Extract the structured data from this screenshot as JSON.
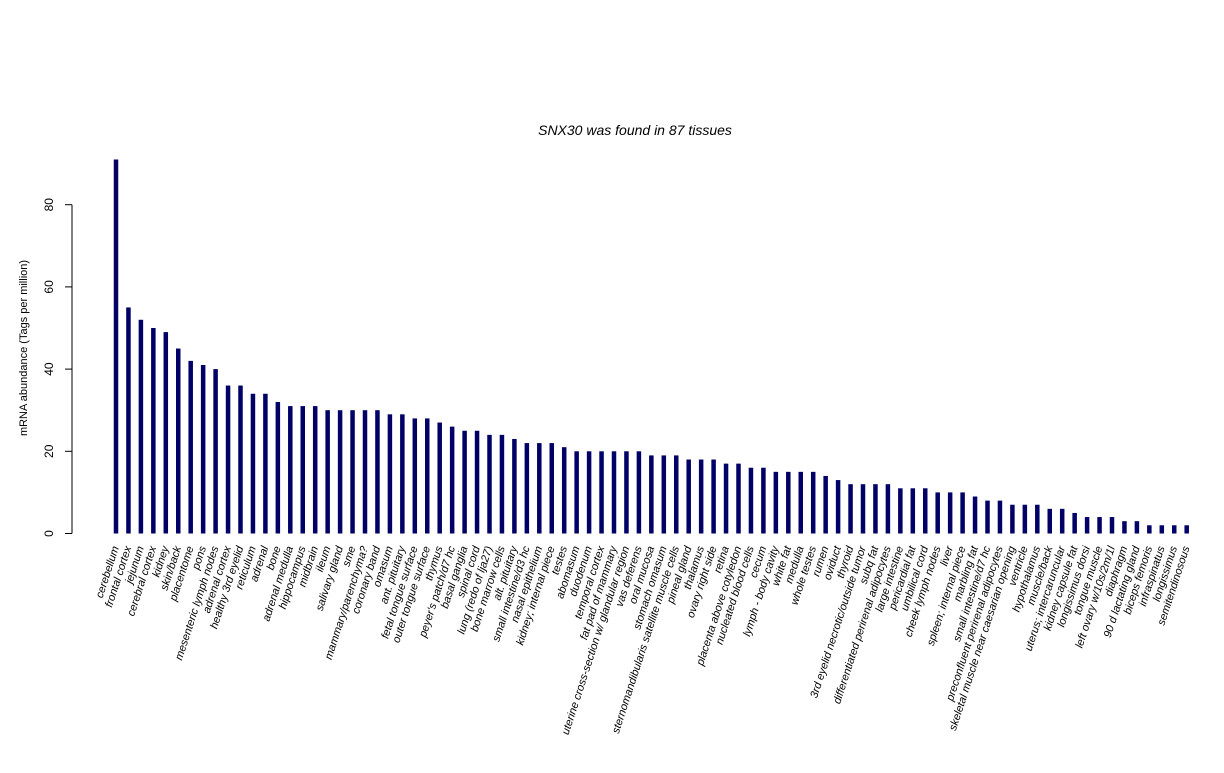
{
  "chart_data": {
    "type": "bar",
    "title": "SNX30  was found in  87  tissues",
    "xlabel": "",
    "ylabel": "mRNA abundance (Tags per million)",
    "ylim": [
      0,
      91
    ],
    "yticks": [
      0,
      20,
      40,
      60,
      80
    ],
    "bar_color": "#000066",
    "grid": false,
    "categories": [
      "cerebellum",
      "frontal cortex",
      "jejunum",
      "cerebral cortex",
      "kidney",
      "skin/back",
      "placentome",
      "pons",
      "mesenteric lymph nodes",
      "adrenal cortex",
      "healthy 3rd eyelid",
      "reticulum",
      "adrenal",
      "bone",
      "adrenal medulla",
      "hippocampus",
      "midbrain",
      "ileum",
      "salivary gland",
      "sme",
      "mammary/parenchyma?",
      "coronary band",
      "omasum",
      "ant. pituitary",
      "fetal tongue surface",
      "outer tongue surface",
      "thymus",
      "peyer's patch/d7 hc",
      "basal ganglia",
      "spinal cord",
      "lung (redo of lja27)",
      "bone marrow cells",
      "alt. pituitary",
      "small intestine/d3 hc",
      "nasal epithelium",
      "kidney; internal piece",
      "testes",
      "abomasum",
      "duodenum",
      "temporal cortex",
      "fat pad of mammary",
      "uterine cross-section w/ glandular region",
      "vas deferens",
      "oral mucosa",
      "stomach omasum",
      "sternomandibularis satellite muscle cells",
      "pineal gland",
      "thalamus",
      "ovary right side",
      "retina",
      "placenta above cotyledon",
      "nucleated blood cells",
      "cecum",
      "lymph - body cavity",
      "white fat",
      "medulla",
      "whole testes",
      "rumen",
      "oviduct",
      "thyroid",
      "3rd eyelid necrotic/outside tumor",
      "subq fat",
      "differentiated perirenal adipocytes",
      "large intestine",
      "pericardial fat",
      "umbilical cord",
      "cheek lymph nodes",
      "liver",
      "spleen; internal piece",
      "marbling fat",
      "small intestine/d7 hc",
      "preconfluent perirenal adipocytes",
      "skeletal muscle near caesarian opening",
      "ventricle",
      "hypothalamus",
      "muscle/back",
      "uterus; intercaruncular",
      "kidney capsule fat",
      "longissimus dorsi",
      "tongue muscle",
      "left ovary w/10s/2m/1l",
      "diaphragm",
      "90 d lactating gland",
      "biceps femoris",
      "infraspinatus",
      "longissimus",
      "semitendinosous"
    ],
    "values": [
      91,
      55,
      52,
      50,
      49,
      45,
      42,
      41,
      40,
      36,
      36,
      34,
      34,
      32,
      31,
      31,
      31,
      30,
      30,
      30,
      30,
      30,
      29,
      29,
      28,
      28,
      27,
      26,
      25,
      25,
      24,
      24,
      23,
      22,
      22,
      22,
      21,
      20,
      20,
      20,
      20,
      20,
      20,
      19,
      19,
      19,
      18,
      18,
      18,
      17,
      17,
      16,
      16,
      15,
      15,
      15,
      15,
      14,
      13,
      12,
      12,
      12,
      12,
      11,
      11,
      11,
      10,
      10,
      10,
      9,
      8,
      8,
      7,
      7,
      7,
      6,
      6,
      5,
      4,
      4,
      4,
      3,
      3,
      2,
      2,
      2,
      2
    ]
  }
}
